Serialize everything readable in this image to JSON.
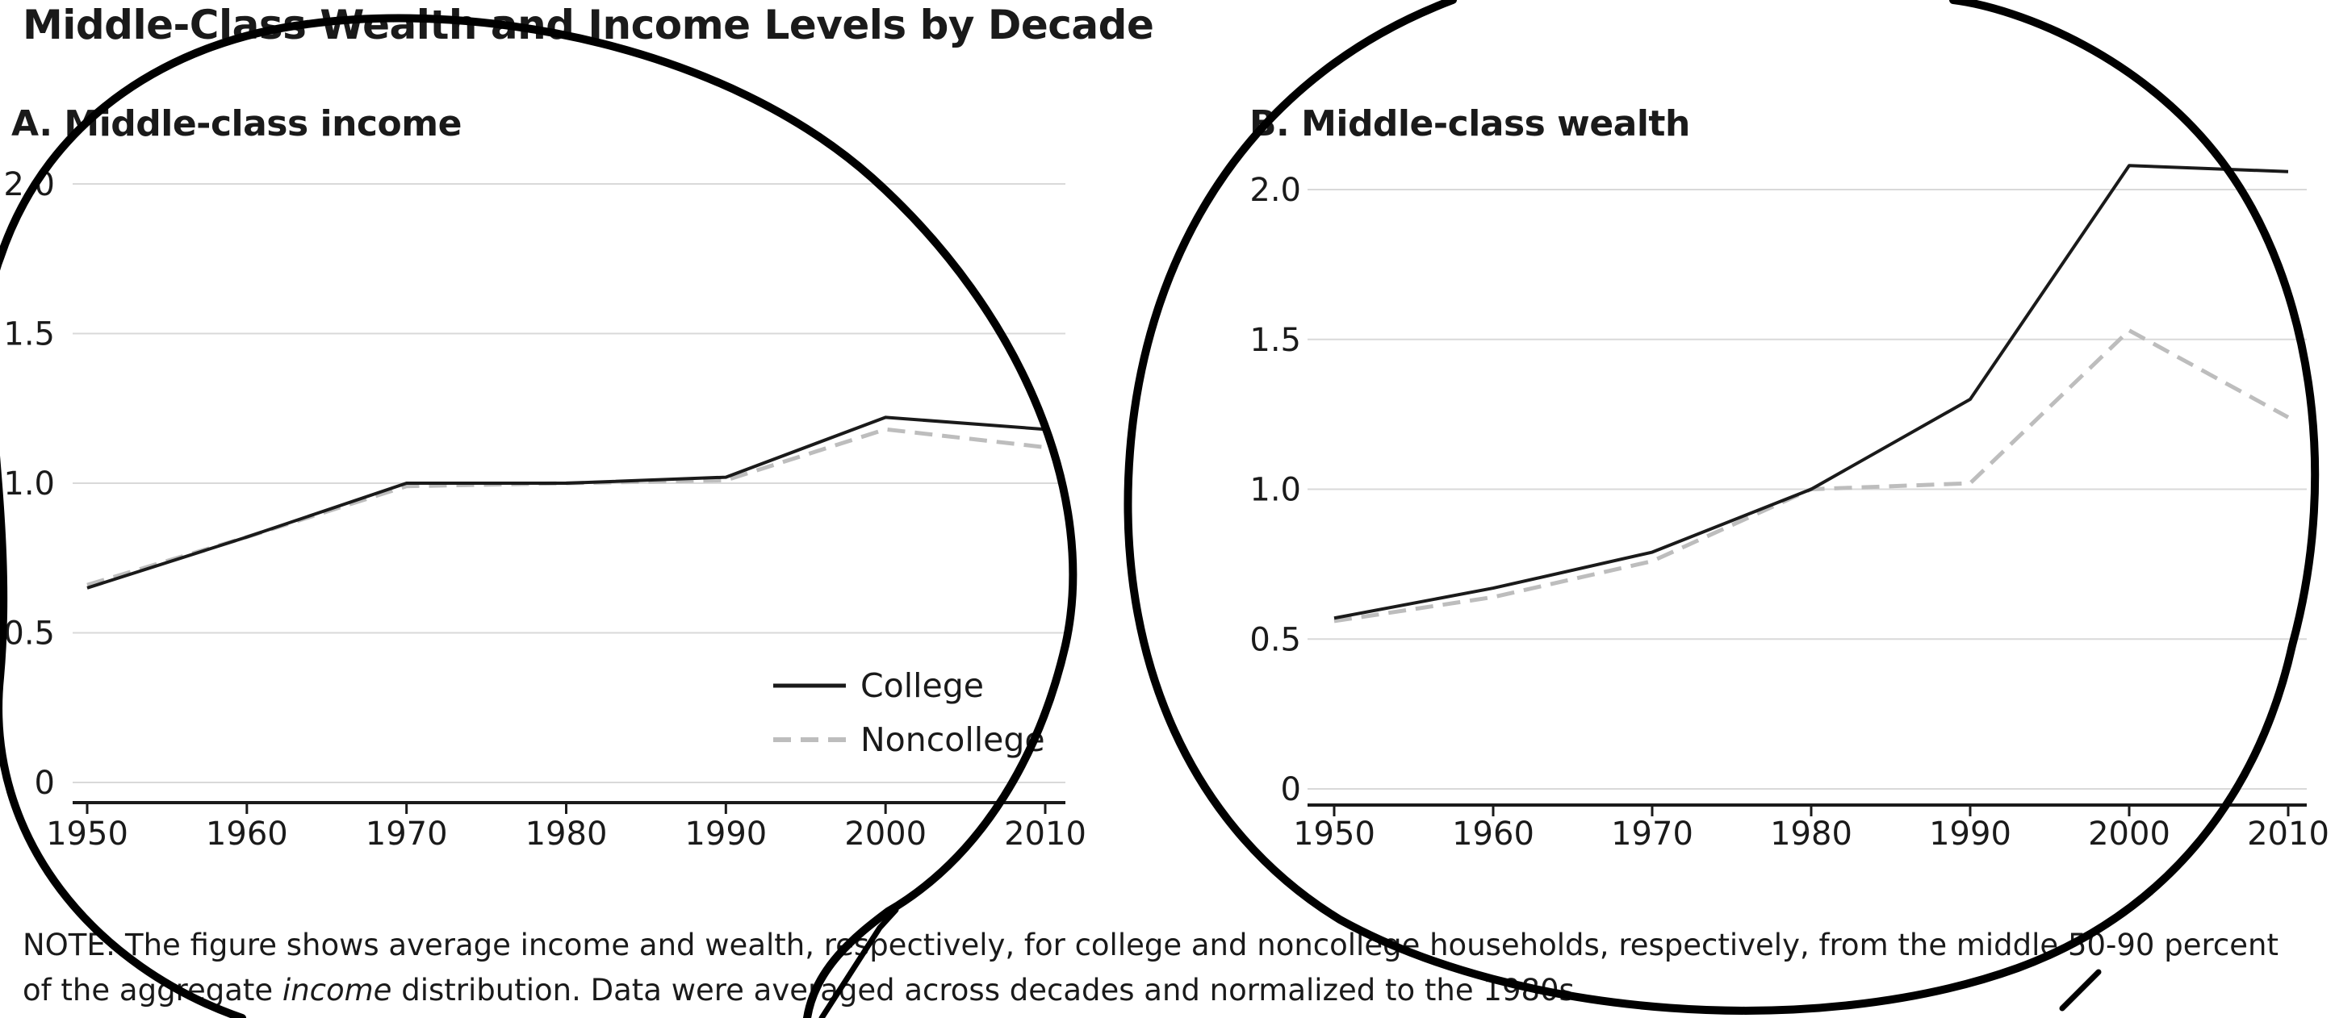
{
  "title": "Middle-Class Wealth and Income Levels by Decade",
  "panels": {
    "a_title": "A. Middle-class income",
    "b_title": "B. Middle-class wealth"
  },
  "legend": {
    "college": "College",
    "noncollege": "Noncollege"
  },
  "note": {
    "part1": "NOTE: The figure shows average income and wealth, respectively, for college and noncollege households, respectively, from the middle 50-90 percent of the aggregate ",
    "italic": "income",
    "part2": " distribution. Data were averaged across decades and normalized to the 1980s."
  },
  "colors": {
    "college": "#1a1a1a",
    "noncollege": "#bdbdbd",
    "grid": "#d9d9d9",
    "annotation": "#000000"
  },
  "chart_data": [
    {
      "type": "line",
      "title": "A. Middle-class income",
      "x": [
        1950,
        1960,
        1970,
        1980,
        1990,
        2000,
        2010
      ],
      "x_tick_labels": [
        "1950",
        "1960",
        "1970",
        "1980",
        "1990",
        "2000",
        "2010"
      ],
      "y_ticks": [
        0,
        0.5,
        1.0,
        1.5,
        2.0
      ],
      "y_tick_labels": [
        "0",
        "0.5",
        "1.0",
        "1.5",
        "2.0"
      ],
      "ylim": [
        0,
        2.0
      ],
      "grid": true,
      "legend_position": "bottom-right",
      "series": [
        {
          "name": "College",
          "style": "solid",
          "values": [
            0.65,
            0.82,
            1.0,
            1.0,
            1.02,
            1.22,
            1.18
          ]
        },
        {
          "name": "Noncollege",
          "style": "dashed",
          "values": [
            0.66,
            0.82,
            0.99,
            1.0,
            1.01,
            1.18,
            1.12
          ]
        }
      ]
    },
    {
      "type": "line",
      "title": "B. Middle-class wealth",
      "x": [
        1950,
        1960,
        1970,
        1980,
        1990,
        2000,
        2010
      ],
      "x_tick_labels": [
        "1950",
        "1960",
        "1970",
        "1980",
        "1990",
        "2000",
        "2010"
      ],
      "y_ticks": [
        0,
        0.5,
        1.0,
        1.5,
        2.0
      ],
      "y_tick_labels": [
        "0",
        "0.5",
        "1.0",
        "1.5",
        "2.0"
      ],
      "ylim": [
        0,
        2.0
      ],
      "grid": true,
      "series": [
        {
          "name": "College",
          "style": "solid",
          "values": [
            0.57,
            0.67,
            0.79,
            1.0,
            1.3,
            2.08,
            2.06
          ]
        },
        {
          "name": "Noncollege",
          "style": "dashed",
          "values": [
            0.56,
            0.64,
            0.76,
            1.0,
            1.02,
            1.53,
            1.24
          ]
        }
      ]
    }
  ]
}
